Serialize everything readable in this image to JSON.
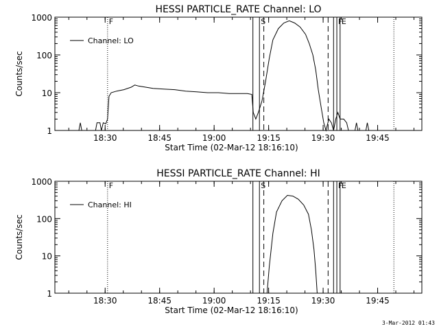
{
  "chart_data": [
    {
      "type": "line",
      "title": "HESSI PARTICLE_RATE Channel: LO",
      "xlabel": "Start Time (02-Mar-12 18:16:10)",
      "ylabel": "Counts/sec",
      "yscale": "log",
      "ylim": [
        1,
        1000
      ],
      "xlim_minutes_after_1816": [
        0,
        101
      ],
      "x_tick_labels": [
        "18:30",
        "18:45",
        "19:00",
        "19:15",
        "19:30",
        "19:45"
      ],
      "x_tick_values": [
        13.83,
        28.83,
        43.83,
        58.83,
        73.83,
        88.83
      ],
      "y_tick_labels": [
        "1",
        "10",
        "100",
        "1000"
      ],
      "y_tick_values": [
        1,
        10,
        100,
        1000
      ],
      "legend": {
        "label": "Channel: LO",
        "placement": "top-left"
      },
      "markers": [
        {
          "label": "F",
          "x": 14.5,
          "style": "dotted"
        },
        {
          "label": "",
          "x": 54.5,
          "style": "solid"
        },
        {
          "label": "S",
          "x": 56.3,
          "style": "solid"
        },
        {
          "label": "",
          "x": 57.5,
          "style": "dashed"
        },
        {
          "label": "",
          "x": 75.2,
          "style": "dashed"
        },
        {
          "label": "",
          "x": 76.7,
          "style": "solid"
        },
        {
          "label": "F",
          "x": 77.6,
          "style": "solid"
        },
        {
          "label": "E",
          "x": 78.5,
          "style": "solid"
        },
        {
          "label": "",
          "x": 93.3,
          "style": "dotted"
        }
      ],
      "series": [
        {
          "name": "Channel: LO",
          "points": [
            [
              6.6,
              1
            ],
            [
              7.0,
              1.6
            ],
            [
              7.4,
              1
            ],
            [
              11.2,
              1
            ],
            [
              11.6,
              1.6
            ],
            [
              12.4,
              1.6
            ],
            [
              12.8,
              1
            ],
            [
              13.3,
              1.6
            ],
            [
              14.0,
              1.5
            ],
            [
              14.5,
              2
            ],
            [
              14.9,
              8
            ],
            [
              15.5,
              10
            ],
            [
              17,
              11
            ],
            [
              19,
              12
            ],
            [
              21,
              14
            ],
            [
              22,
              16
            ],
            [
              23,
              15
            ],
            [
              25,
              14
            ],
            [
              27,
              13
            ],
            [
              30,
              12.5
            ],
            [
              33,
              12
            ],
            [
              36,
              11
            ],
            [
              39,
              10.5
            ],
            [
              42,
              10
            ],
            [
              45,
              10
            ],
            [
              48,
              9.5
            ],
            [
              51,
              9.5
            ],
            [
              53,
              9.5
            ],
            [
              54.2,
              9
            ],
            [
              54.6,
              3
            ],
            [
              55.3,
              2
            ],
            [
              56.0,
              3
            ],
            [
              57.0,
              6
            ],
            [
              58.0,
              20
            ],
            [
              59.0,
              80
            ],
            [
              60.0,
              250
            ],
            [
              61.5,
              500
            ],
            [
              63.0,
              700
            ],
            [
              64.5,
              800
            ],
            [
              66.0,
              700
            ],
            [
              67.5,
              550
            ],
            [
              69.0,
              350
            ],
            [
              70.0,
              200
            ],
            [
              71.0,
              100
            ],
            [
              71.8,
              40
            ],
            [
              72.5,
              12
            ],
            [
              73.3,
              4
            ],
            [
              74.0,
              1.6
            ],
            [
              74.6,
              1
            ],
            [
              75.4,
              2
            ],
            [
              76.1,
              1.6
            ],
            [
              76.7,
              1
            ],
            [
              77.3,
              2
            ],
            [
              77.9,
              3
            ],
            [
              78.5,
              2
            ],
            [
              79.5,
              2
            ],
            [
              80.3,
              1.6
            ],
            [
              80.8,
              1
            ],
            [
              82.6,
              1
            ],
            [
              83.0,
              1.6
            ],
            [
              83.4,
              1
            ],
            [
              85.6,
              1
            ],
            [
              86.0,
              1.6
            ],
            [
              86.4,
              1
            ],
            [
              101,
              1
            ]
          ]
        }
      ]
    },
    {
      "type": "line",
      "title": "HESSI PARTICLE_RATE Channel: HI",
      "xlabel": "Start Time (02-Mar-12 18:16:10)",
      "ylabel": "Counts/sec",
      "yscale": "log",
      "ylim": [
        1,
        1000
      ],
      "xlim_minutes_after_1816": [
        0,
        101
      ],
      "x_tick_labels": [
        "18:30",
        "18:45",
        "19:00",
        "19:15",
        "19:30",
        "19:45"
      ],
      "x_tick_values": [
        13.83,
        28.83,
        43.83,
        58.83,
        73.83,
        88.83
      ],
      "y_tick_labels": [
        "1",
        "10",
        "100",
        "1000"
      ],
      "y_tick_values": [
        1,
        10,
        100,
        1000
      ],
      "legend": {
        "label": "Channel: HI",
        "placement": "top-left"
      },
      "markers": [
        {
          "label": "F",
          "x": 14.5,
          "style": "dotted"
        },
        {
          "label": "",
          "x": 54.5,
          "style": "solid"
        },
        {
          "label": "S",
          "x": 56.3,
          "style": "solid"
        },
        {
          "label": "",
          "x": 57.5,
          "style": "dashed"
        },
        {
          "label": "",
          "x": 75.2,
          "style": "dashed"
        },
        {
          "label": "",
          "x": 76.7,
          "style": "solid"
        },
        {
          "label": "F",
          "x": 77.6,
          "style": "solid"
        },
        {
          "label": "E",
          "x": 78.5,
          "style": "solid"
        },
        {
          "label": "",
          "x": 93.3,
          "style": "dotted"
        }
      ],
      "series": [
        {
          "name": "Channel: HI",
          "points": [
            [
              58.4,
              1
            ],
            [
              59.0,
              5
            ],
            [
              60.0,
              40
            ],
            [
              61.0,
              150
            ],
            [
              62.5,
              300
            ],
            [
              64.0,
              420
            ],
            [
              65.5,
              400
            ],
            [
              67.0,
              330
            ],
            [
              68.5,
              230
            ],
            [
              69.8,
              130
            ],
            [
              70.6,
              50
            ],
            [
              71.3,
              15
            ],
            [
              71.8,
              4
            ],
            [
              72.2,
              1
            ]
          ]
        }
      ]
    }
  ],
  "timestamp": "3-Mar-2012 01:43"
}
